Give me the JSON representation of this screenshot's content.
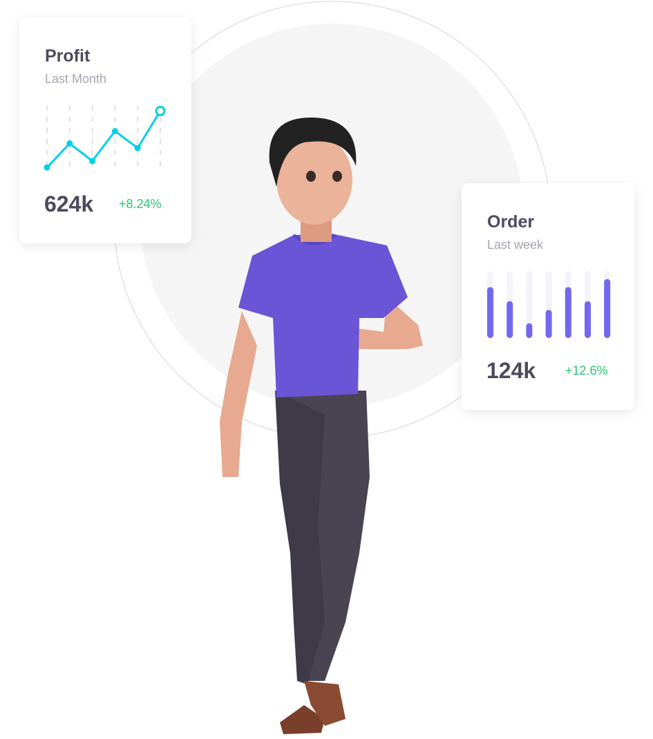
{
  "colors": {
    "line": "#00cfe8",
    "bar": "#7367f0",
    "bar_track": "#f4f4f8",
    "positive": "#28c76f"
  },
  "profit_card": {
    "title": "Profit",
    "subtitle": "Last Month",
    "value": "624k",
    "change": "+8.24%",
    "chart_data": {
      "type": "line",
      "values": [
        5,
        42,
        15,
        61,
        35,
        92
      ],
      "ylim": [
        0,
        100
      ],
      "grid": "vertical-dashed"
    }
  },
  "order_card": {
    "title": "Order",
    "subtitle": "Last week",
    "value": "124k",
    "change": "+12.6%",
    "chart_data": {
      "type": "bar",
      "values": [
        76,
        55,
        22,
        42,
        76,
        55,
        88
      ],
      "ylim": [
        0,
        100
      ]
    }
  },
  "illustration": {
    "subject": "person-character-icon"
  }
}
